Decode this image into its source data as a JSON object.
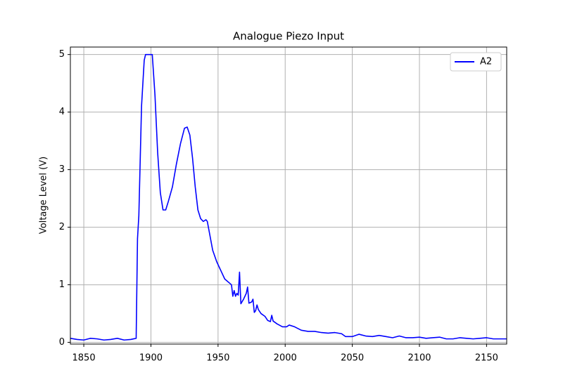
{
  "chart_data": {
    "type": "line",
    "title": "Analogue Piezo Input",
    "y_label": "Voltage Level (V)",
    "x": [
      1840,
      1845,
      1850,
      1855,
      1860,
      1865,
      1870,
      1875,
      1880,
      1885,
      1889,
      1890,
      1891,
      1893,
      1895,
      1896,
      1901,
      1903,
      1905,
      1907,
      1909,
      1911,
      1913,
      1916,
      1919,
      1922,
      1925,
      1927,
      1929,
      1931,
      1933,
      1935,
      1937,
      1939,
      1941,
      1942,
      1944,
      1946,
      1949,
      1952,
      1955,
      1960,
      1961,
      1962,
      1963,
      1964,
      1965,
      1966,
      1967,
      1969,
      1971,
      1972,
      1973,
      1975,
      1976,
      1977,
      1978,
      1979,
      1980,
      1982,
      1985,
      1987,
      1989,
      1990,
      1991,
      1994,
      1998,
      2001,
      2003,
      2007,
      2012,
      2017,
      2022,
      2027,
      2032,
      2037,
      2042,
      2045,
      2050,
      2055,
      2060,
      2065,
      2070,
      2075,
      2080,
      2085,
      2090,
      2095,
      2100,
      2105,
      2110,
      2115,
      2120,
      2125,
      2130,
      2135,
      2140,
      2145,
      2150,
      2155,
      2160,
      2165
    ],
    "series": [
      {
        "name": "A2",
        "color": "#0000ff",
        "values": [
          0.07,
          0.05,
          0.04,
          0.07,
          0.06,
          0.04,
          0.05,
          0.07,
          0.04,
          0.05,
          0.07,
          1.8,
          2.2,
          4.1,
          4.9,
          5.0,
          5.0,
          4.3,
          3.3,
          2.6,
          2.3,
          2.3,
          2.45,
          2.7,
          3.1,
          3.45,
          3.72,
          3.74,
          3.6,
          3.2,
          2.7,
          2.3,
          2.15,
          2.1,
          2.13,
          2.1,
          1.85,
          1.6,
          1.4,
          1.25,
          1.1,
          1.0,
          0.8,
          0.9,
          0.8,
          0.85,
          0.82,
          1.22,
          0.67,
          0.75,
          0.85,
          0.96,
          0.68,
          0.7,
          0.75,
          0.52,
          0.55,
          0.65,
          0.57,
          0.5,
          0.45,
          0.38,
          0.36,
          0.47,
          0.37,
          0.32,
          0.27,
          0.27,
          0.3,
          0.27,
          0.21,
          0.19,
          0.19,
          0.17,
          0.16,
          0.17,
          0.15,
          0.1,
          0.1,
          0.14,
          0.11,
          0.1,
          0.12,
          0.1,
          0.08,
          0.11,
          0.08,
          0.08,
          0.09,
          0.07,
          0.08,
          0.09,
          0.06,
          0.06,
          0.08,
          0.07,
          0.06,
          0.07,
          0.08,
          0.06,
          0.06,
          0.06
        ]
      }
    ],
    "xlim": [
      1840,
      2165
    ],
    "ylim": [
      -0.03,
      5.13
    ],
    "xticks": [
      1850,
      1900,
      1950,
      2000,
      2050,
      2100,
      2150
    ],
    "yticks": [
      0,
      1,
      2,
      3,
      4,
      5
    ],
    "grid": true,
    "legend": "upper right"
  }
}
